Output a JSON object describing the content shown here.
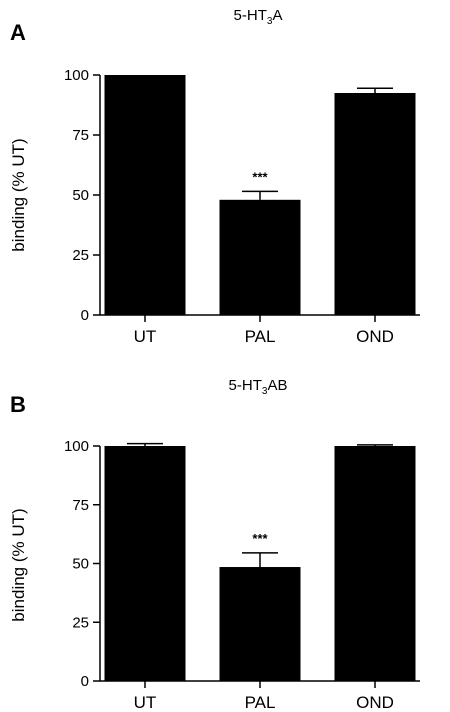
{
  "colors": {
    "bar": "#000000",
    "axis": "#000000"
  },
  "chart_data": [
    {
      "type": "bar",
      "panel": "A",
      "title": {
        "prefix": "5-HT",
        "subscript": "3",
        "suffix": "A"
      },
      "ylabel": "binding (% UT)",
      "xlabel": "",
      "ylim": [
        0,
        100
      ],
      "yticks": [
        0,
        25,
        50,
        75,
        100
      ],
      "categories": [
        "UT",
        "PAL",
        "OND"
      ],
      "values": [
        100,
        48,
        92.5
      ],
      "errors": [
        0,
        3.5,
        2
      ],
      "annotations": [
        "",
        "***",
        ""
      ],
      "grid": false,
      "legend": "none"
    },
    {
      "type": "bar",
      "panel": "B",
      "title": {
        "prefix": "5-HT",
        "subscript": "3",
        "suffix": "AB"
      },
      "ylabel": "binding (% UT)",
      "xlabel": "",
      "ylim": [
        0,
        100
      ],
      "yticks": [
        0,
        25,
        50,
        75,
        100
      ],
      "categories": [
        "UT",
        "PAL",
        "OND"
      ],
      "values": [
        100,
        48.5,
        100
      ],
      "errors": [
        1,
        6,
        0.5
      ],
      "annotations": [
        "",
        "***",
        ""
      ],
      "grid": false,
      "legend": "none"
    }
  ]
}
